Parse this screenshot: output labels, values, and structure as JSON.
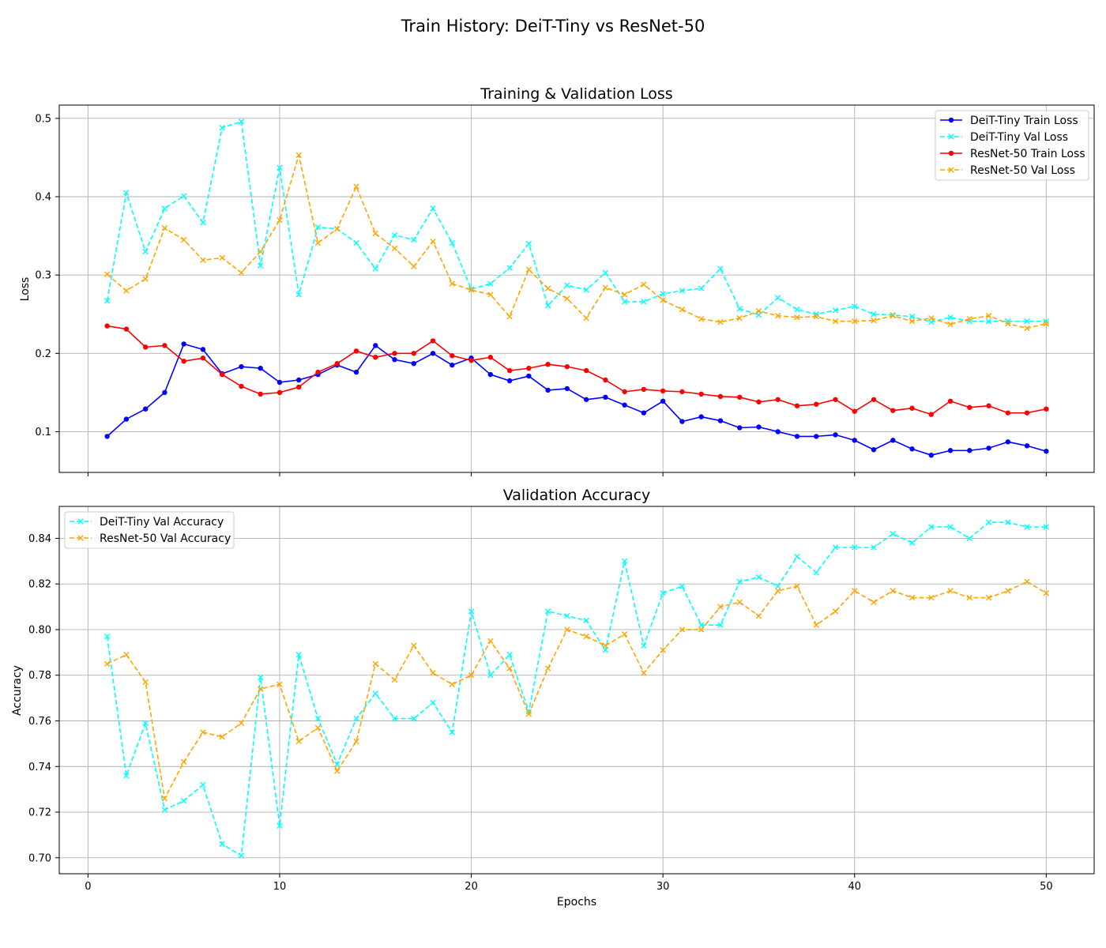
{
  "figure": {
    "suptitle": "Train History: DeiT-Tiny vs ResNet-50"
  },
  "chart_data": [
    {
      "type": "line",
      "title": "Training & Validation Loss",
      "xlabel": "",
      "ylabel": "Loss",
      "xlim": [
        -1.5,
        52.5
      ],
      "ylim": [
        0.048,
        0.517
      ],
      "xticks": [
        0,
        10,
        20,
        30,
        40,
        50
      ],
      "yticks": [
        0.1,
        0.2,
        0.3,
        0.4,
        0.5
      ],
      "ytick_format": 1,
      "show_xtick_labels": false,
      "grid": true,
      "legend_position": "upper right",
      "x": [
        1,
        2,
        3,
        4,
        5,
        6,
        7,
        8,
        9,
        10,
        11,
        12,
        13,
        14,
        15,
        16,
        17,
        18,
        19,
        20,
        21,
        22,
        23,
        24,
        25,
        26,
        27,
        28,
        29,
        30,
        31,
        32,
        33,
        34,
        35,
        36,
        37,
        38,
        39,
        40,
        41,
        42,
        43,
        44,
        45,
        46,
        47,
        48,
        49,
        50
      ],
      "series": [
        {
          "name": "DeiT-Tiny Train Loss",
          "color": "#0000ff",
          "dash": "solid",
          "marker": "dot",
          "values": [
            0.094,
            0.116,
            0.129,
            0.15,
            0.212,
            0.205,
            0.174,
            0.183,
            0.181,
            0.163,
            0.166,
            0.173,
            0.185,
            0.176,
            0.21,
            0.192,
            0.187,
            0.2,
            0.185,
            0.194,
            0.173,
            0.165,
            0.171,
            0.153,
            0.155,
            0.141,
            0.144,
            0.134,
            0.124,
            0.139,
            0.113,
            0.119,
            0.114,
            0.105,
            0.106,
            0.1,
            0.094,
            0.094,
            0.096,
            0.089,
            0.077,
            0.089,
            0.078,
            0.07,
            0.076,
            0.076,
            0.079,
            0.087,
            0.082,
            0.075
          ]
        },
        {
          "name": "DeiT-Tiny Val Loss",
          "color": "#00ffff",
          "dash": "dashed",
          "marker": "x",
          "values": [
            0.267,
            0.405,
            0.33,
            0.385,
            0.401,
            0.367,
            0.488,
            0.496,
            0.312,
            0.437,
            0.275,
            0.361,
            0.359,
            0.341,
            0.308,
            0.351,
            0.345,
            0.385,
            0.341,
            0.282,
            0.289,
            0.309,
            0.34,
            0.261,
            0.287,
            0.281,
            0.303,
            0.266,
            0.266,
            0.276,
            0.28,
            0.283,
            0.308,
            0.257,
            0.249,
            0.271,
            0.256,
            0.25,
            0.255,
            0.26,
            0.25,
            0.249,
            0.247,
            0.24,
            0.246,
            0.241,
            0.241,
            0.241,
            0.241,
            0.241
          ]
        },
        {
          "name": "ResNet-50 Train Loss",
          "color": "#ff0000",
          "dash": "solid",
          "marker": "dot",
          "values": [
            0.235,
            0.231,
            0.208,
            0.21,
            0.19,
            0.194,
            0.173,
            0.158,
            0.148,
            0.15,
            0.157,
            0.176,
            0.187,
            0.203,
            0.195,
            0.2,
            0.2,
            0.216,
            0.197,
            0.191,
            0.195,
            0.178,
            0.181,
            0.186,
            0.183,
            0.178,
            0.166,
            0.151,
            0.154,
            0.152,
            0.151,
            0.148,
            0.145,
            0.144,
            0.138,
            0.141,
            0.133,
            0.135,
            0.141,
            0.126,
            0.141,
            0.127,
            0.13,
            0.122,
            0.139,
            0.131,
            0.133,
            0.124,
            0.124,
            0.129
          ]
        },
        {
          "name": "ResNet-50 Val Loss",
          "color": "#ffa500",
          "dash": "dashed",
          "marker": "x",
          "values": [
            0.301,
            0.28,
            0.295,
            0.36,
            0.345,
            0.319,
            0.322,
            0.303,
            0.33,
            0.37,
            0.453,
            0.341,
            0.359,
            0.413,
            0.353,
            0.334,
            0.311,
            0.343,
            0.289,
            0.281,
            0.275,
            0.247,
            0.307,
            0.283,
            0.27,
            0.245,
            0.284,
            0.275,
            0.288,
            0.268,
            0.256,
            0.244,
            0.24,
            0.245,
            0.254,
            0.248,
            0.246,
            0.247,
            0.241,
            0.241,
            0.242,
            0.248,
            0.241,
            0.245,
            0.237,
            0.244,
            0.248,
            0.238,
            0.232,
            0.238
          ]
        }
      ]
    },
    {
      "type": "line",
      "title": "Validation Accuracy",
      "xlabel": "Epochs",
      "ylabel": "Accuracy",
      "xlim": [
        -1.5,
        52.5
      ],
      "ylim": [
        0.693,
        0.854
      ],
      "xticks": [
        0,
        10,
        20,
        30,
        40,
        50
      ],
      "yticks": [
        0.7,
        0.72,
        0.74,
        0.76,
        0.78,
        0.8,
        0.82,
        0.84
      ],
      "ytick_format": 2,
      "show_xtick_labels": true,
      "grid": true,
      "legend_position": "upper left",
      "x": [
        1,
        2,
        3,
        4,
        5,
        6,
        7,
        8,
        9,
        10,
        11,
        12,
        13,
        14,
        15,
        16,
        17,
        18,
        19,
        20,
        21,
        22,
        23,
        24,
        25,
        26,
        27,
        28,
        29,
        30,
        31,
        32,
        33,
        34,
        35,
        36,
        37,
        38,
        39,
        40,
        41,
        42,
        43,
        44,
        45,
        46,
        47,
        48,
        49,
        50
      ],
      "series": [
        {
          "name": "DeiT-Tiny Val Accuracy",
          "color": "#00ffff",
          "dash": "dashed",
          "marker": "x",
          "values": [
            0.797,
            0.736,
            0.759,
            0.721,
            0.725,
            0.732,
            0.706,
            0.701,
            0.779,
            0.714,
            0.789,
            0.761,
            0.741,
            0.761,
            0.772,
            0.761,
            0.761,
            0.768,
            0.755,
            0.808,
            0.78,
            0.789,
            0.764,
            0.808,
            0.806,
            0.804,
            0.791,
            0.83,
            0.793,
            0.816,
            0.819,
            0.802,
            0.802,
            0.821,
            0.823,
            0.819,
            0.832,
            0.825,
            0.836,
            0.836,
            0.836,
            0.842,
            0.838,
            0.845,
            0.845,
            0.84,
            0.847,
            0.847,
            0.845,
            0.845
          ]
        },
        {
          "name": "ResNet-50 Val Accuracy",
          "color": "#ffa500",
          "dash": "dashed",
          "marker": "x",
          "values": [
            0.785,
            0.789,
            0.777,
            0.726,
            0.742,
            0.755,
            0.753,
            0.759,
            0.774,
            0.776,
            0.751,
            0.757,
            0.738,
            0.751,
            0.785,
            0.778,
            0.793,
            0.781,
            0.776,
            0.78,
            0.795,
            0.783,
            0.763,
            0.783,
            0.8,
            0.797,
            0.793,
            0.798,
            0.781,
            0.791,
            0.8,
            0.8,
            0.81,
            0.812,
            0.806,
            0.817,
            0.819,
            0.802,
            0.808,
            0.817,
            0.812,
            0.817,
            0.814,
            0.814,
            0.817,
            0.814,
            0.814,
            0.817,
            0.821,
            0.816
          ]
        }
      ]
    }
  ]
}
